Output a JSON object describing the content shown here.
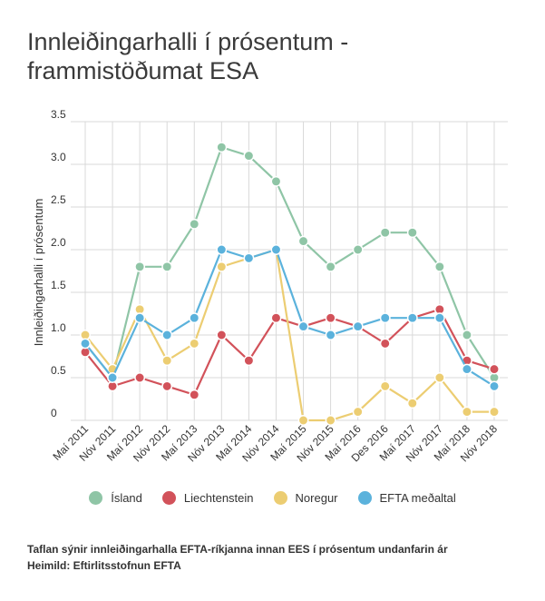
{
  "title": "Innleiðingarhalli í prósentum - frammistöðumat ESA",
  "caption": {
    "line1": "Taflan sýnir innleiðingarhalla EFTA-ríkjanna innan EES í prósentum undanfarin ár",
    "line2": "Heimild: Eftirlitsstofnun EFTA"
  },
  "chart_data": {
    "type": "line",
    "title": "Innleiðingarhalli í prósentum - frammistöðumat ESA",
    "xlabel": "",
    "ylabel": "Innleiðingarhalli í prósentum",
    "ylim": [
      0,
      3.5
    ],
    "yticks": [
      "0",
      "0.5",
      "1.0",
      "1.5",
      "2.0",
      "2.5",
      "3.0",
      "3.5"
    ],
    "grid": true,
    "legend_position": "bottom",
    "categories": [
      "Maí 2011",
      "Nóv 2011",
      "Maí 2012",
      "Nóv 2012",
      "Maí 2013",
      "Nóv 2013",
      "Maí 2014",
      "Nóv 2014",
      "Maí 2015",
      "Nóv 2015",
      "Maí 2016",
      "Des 2016",
      "Maí 2017",
      "Nóv 2017",
      "Maí 2018",
      "Nóv 2018"
    ],
    "series": [
      {
        "name": "Ísland",
        "color": "#8fc5a6",
        "values": [
          0.9,
          0.5,
          1.8,
          1.8,
          2.3,
          3.2,
          3.1,
          2.8,
          2.1,
          1.8,
          2.0,
          2.2,
          2.2,
          1.8,
          1.0,
          0.5
        ]
      },
      {
        "name": "Liechtenstein",
        "color": "#d2525a",
        "values": [
          0.8,
          0.4,
          0.5,
          0.4,
          0.3,
          1.0,
          0.7,
          1.2,
          1.1,
          1.2,
          1.1,
          0.9,
          1.2,
          1.3,
          0.7,
          0.6
        ]
      },
      {
        "name": "Noregur",
        "color": "#eccd72",
        "values": [
          1.0,
          0.6,
          1.3,
          0.7,
          0.9,
          1.8,
          1.9,
          2.0,
          0.0,
          0.0,
          0.1,
          0.4,
          0.2,
          0.5,
          0.1,
          0.1
        ]
      },
      {
        "name": "EFTA meðaltal",
        "color": "#5bb2dc",
        "values": [
          0.9,
          0.5,
          1.2,
          1.0,
          1.2,
          2.0,
          1.9,
          2.0,
          1.1,
          1.0,
          1.1,
          1.2,
          1.2,
          1.2,
          0.6,
          0.4
        ]
      }
    ]
  }
}
